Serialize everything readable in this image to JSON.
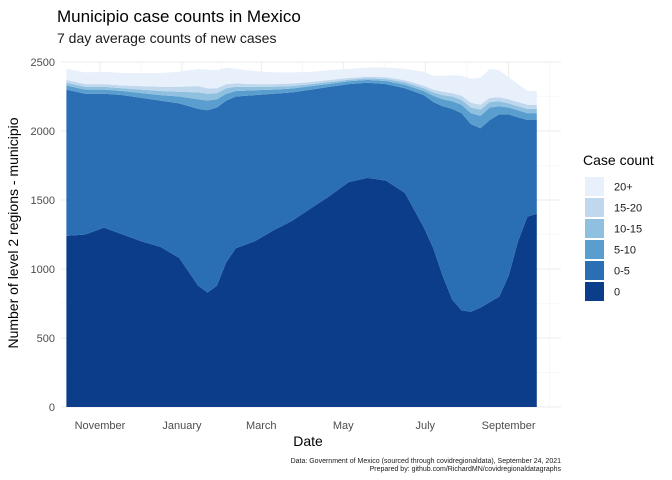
{
  "chart_data": {
    "type": "area",
    "stacked": true,
    "title": "Municipio case counts in Mexico",
    "subtitle": "7 day average counts of new cases",
    "xlabel": "Date",
    "ylabel": "Number of level 2 regions - municipio",
    "ylim": [
      0,
      2500
    ],
    "yticks": [
      0,
      500,
      1000,
      1500,
      2000,
      2500
    ],
    "xlim": [
      "2020-10-03",
      "2021-10-10"
    ],
    "xticks": [
      {
        "date": "2020-11-01",
        "label": "November"
      },
      {
        "date": "2021-01-01",
        "label": "January"
      },
      {
        "date": "2021-03-01",
        "label": "March"
      },
      {
        "date": "2021-05-01",
        "label": "May"
      },
      {
        "date": "2021-07-01",
        "label": "July"
      },
      {
        "date": "2021-09-01",
        "label": "September"
      }
    ],
    "grid": true,
    "legend_title": "Case count",
    "legend_position": "right",
    "x": [
      "2020-10-07",
      "2020-10-21",
      "2020-11-04",
      "2020-11-18",
      "2020-12-02",
      "2020-12-16",
      "2020-12-30",
      "2021-01-13",
      "2021-01-20",
      "2021-01-27",
      "2021-02-03",
      "2021-02-10",
      "2021-02-24",
      "2021-03-10",
      "2021-03-24",
      "2021-04-07",
      "2021-04-21",
      "2021-05-05",
      "2021-05-19",
      "2021-06-02",
      "2021-06-16",
      "2021-06-30",
      "2021-07-07",
      "2021-07-14",
      "2021-07-21",
      "2021-07-28",
      "2021-08-04",
      "2021-08-11",
      "2021-08-18",
      "2021-08-25",
      "2021-09-01",
      "2021-09-08",
      "2021-09-15",
      "2021-09-22"
    ],
    "series": [
      {
        "name": "0",
        "color": "#0b3d8a",
        "values": [
          1240,
          1250,
          1300,
          1250,
          1200,
          1160,
          1080,
          880,
          830,
          880,
          1050,
          1150,
          1200,
          1280,
          1350,
          1440,
          1530,
          1630,
          1660,
          1640,
          1550,
          1300,
          1150,
          950,
          780,
          700,
          690,
          720,
          760,
          800,
          950,
          1200,
          1380,
          1400
        ]
      },
      {
        "name": "0-5",
        "color": "#2a6fb4",
        "values": [
          1060,
          1020,
          970,
          1010,
          1040,
          1060,
          1120,
          1280,
          1320,
          1290,
          1170,
          1100,
          1060,
          990,
          930,
          860,
          790,
          710,
          690,
          700,
          760,
          960,
          1060,
          1230,
          1380,
          1430,
          1360,
          1300,
          1320,
          1320,
          1170,
          900,
          700,
          680
        ]
      },
      {
        "name": "5-10",
        "color": "#5a9ecf",
        "values": [
          30,
          30,
          30,
          30,
          35,
          40,
          50,
          70,
          70,
          60,
          50,
          40,
          35,
          30,
          28,
          25,
          22,
          20,
          20,
          22,
          25,
          30,
          45,
          50,
          55,
          60,
          80,
          90,
          90,
          60,
          50,
          50,
          50,
          50
        ]
      },
      {
        "name": "10-15",
        "color": "#8fc0df",
        "values": [
          20,
          20,
          20,
          20,
          25,
          30,
          35,
          50,
          50,
          45,
          40,
          30,
          25,
          20,
          18,
          15,
          14,
          12,
          12,
          14,
          18,
          20,
          25,
          30,
          35,
          35,
          40,
          45,
          40,
          35,
          30,
          30,
          30,
          30
        ]
      },
      {
        "name": "15-20",
        "color": "#bfd8ee",
        "values": [
          20,
          20,
          20,
          20,
          25,
          30,
          35,
          45,
          40,
          35,
          30,
          25,
          20,
          20,
          18,
          15,
          14,
          12,
          12,
          14,
          15,
          18,
          20,
          25,
          25,
          30,
          35,
          35,
          30,
          30,
          30,
          30,
          30,
          30
        ]
      },
      {
        "name": "20+",
        "color": "#e8f0fb",
        "values": [
          80,
          85,
          90,
          90,
          95,
          100,
          110,
          125,
          135,
          130,
          120,
          105,
          95,
          85,
          80,
          75,
          70,
          66,
          66,
          70,
          82,
          102,
          100,
          115,
          130,
          145,
          175,
          195,
          210,
          195,
          160,
          130,
          100,
          100
        ]
      }
    ],
    "caption": [
      "Data: Government of Mexico (sourced through covidregionaldata), September 24, 2021",
      "Prepared by: github.com/RichardMN/covidregionaldatagraphs"
    ]
  }
}
